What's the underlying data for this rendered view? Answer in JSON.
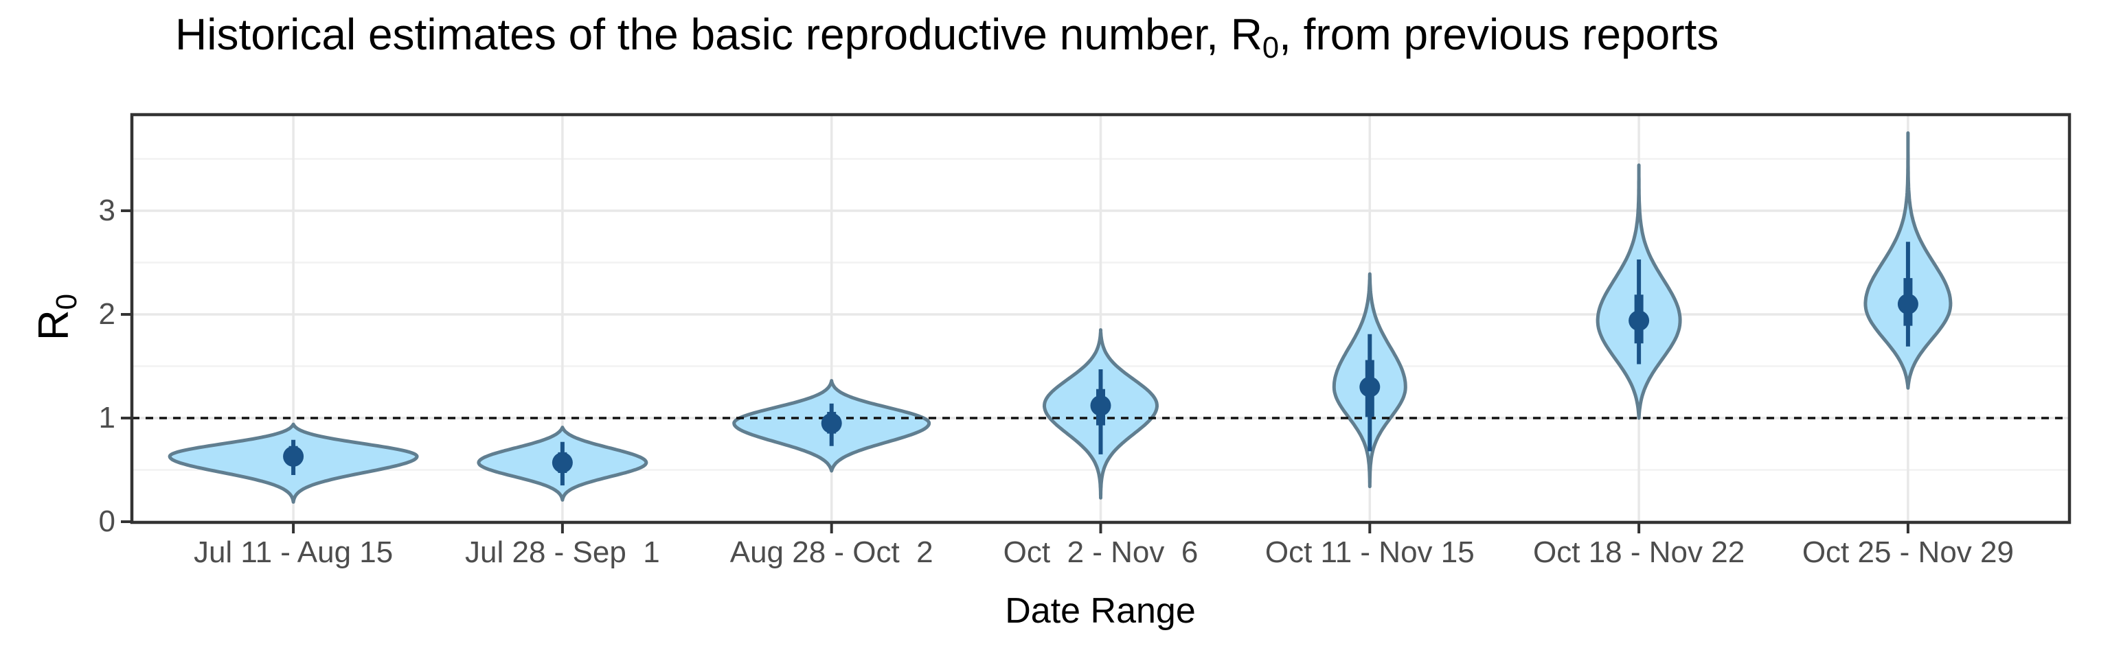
{
  "chart_data": {
    "type": "violin",
    "title": {
      "full": "Historical estimates of the basic reproductive number, R0, from previous reports",
      "pre": "Historical estimates of the basic reproductive number, R",
      "sub": "0",
      "post": ", from previous reports"
    },
    "xlabel": "Date Range",
    "ylabel": {
      "pre": "R",
      "sub": "0"
    },
    "categories": [
      "Jul 11 - Aug 15",
      "Jul 28 - Sep  1",
      "Aug 28 - Oct  2",
      "Oct  2 - Nov  6",
      "Oct 11 - Nov 15",
      "Oct 18 - Nov 22",
      "Oct 25 - Nov 29"
    ],
    "ytick_labels": [
      "0",
      "1",
      "2",
      "3"
    ],
    "yticks": [
      0,
      1,
      2,
      3
    ],
    "y_minor_ticks": [
      0.5,
      1.5,
      2.5,
      3.5
    ],
    "ylim": [
      0,
      3.93
    ],
    "reference_line_y": 1,
    "grid": true,
    "legend": "none",
    "violins": [
      {
        "category": "Jul 11 - Aug 15",
        "median": 0.63,
        "ci50": [
          0.54,
          0.73
        ],
        "ci95": [
          0.45,
          0.79
        ],
        "range": [
          0.19,
          0.94
        ],
        "max_halfwidth": 180,
        "shape": {
          "s_top": 0.38,
          "s_bot": 0.34
        }
      },
      {
        "category": "Jul 28 - Sep  1",
        "median": 0.57,
        "ci50": [
          0.47,
          0.67
        ],
        "ci95": [
          0.35,
          0.77
        ],
        "range": [
          0.21,
          0.91
        ],
        "max_halfwidth": 122,
        "shape": {
          "s_top": 0.4,
          "s_bot": 0.36
        }
      },
      {
        "category": "Aug 28 - Oct  2",
        "median": 0.95,
        "ci50": [
          0.85,
          1.06
        ],
        "ci95": [
          0.73,
          1.14
        ],
        "range": [
          0.49,
          1.36
        ],
        "max_halfwidth": 142,
        "shape": {
          "s_top": 0.36,
          "s_bot": 0.38
        }
      },
      {
        "category": "Oct  2 - Nov  6",
        "median": 1.12,
        "ci50": [
          0.93,
          1.28
        ],
        "ci95": [
          0.65,
          1.47
        ],
        "range": [
          0.23,
          1.85
        ],
        "max_halfwidth": 82,
        "shape": {
          "s_top": 0.34,
          "s_bot": 0.3
        }
      },
      {
        "category": "Oct 11 - Nov 15",
        "median": 1.3,
        "ci50": [
          1.01,
          1.56
        ],
        "ci95": [
          0.68,
          1.81
        ],
        "range": [
          0.34,
          2.39
        ],
        "max_halfwidth": 52,
        "shape": {
          "s_top": 0.34,
          "s_bot": 0.3
        }
      },
      {
        "category": "Oct 18 - Nov 22",
        "median": 1.94,
        "ci50": [
          1.72,
          2.19
        ],
        "ci95": [
          1.52,
          2.53
        ],
        "range": [
          1.0,
          3.44
        ],
        "max_halfwidth": 60,
        "shape": {
          "s_top": 0.26,
          "s_bot": 0.38
        }
      },
      {
        "category": "Oct 25 - Nov 29",
        "median": 2.1,
        "ci50": [
          1.89,
          2.35
        ],
        "ci95": [
          1.69,
          2.7
        ],
        "range": [
          1.29,
          3.75
        ],
        "max_halfwidth": 62,
        "shape": {
          "s_top": 0.24,
          "s_bot": 0.4
        }
      }
    ],
    "colors": {
      "violin_fill": "#aee1fb",
      "violin_outline": "#607e90",
      "point_interval": "#1a5287",
      "grid_major": "#e8e8e8",
      "grid_minor": "#f2f2f2",
      "panel_border": "#333333",
      "tick_mark": "#333333",
      "tick_text": "#4d4d4d",
      "reference_line": "#111111",
      "background": "#ffffff"
    }
  }
}
